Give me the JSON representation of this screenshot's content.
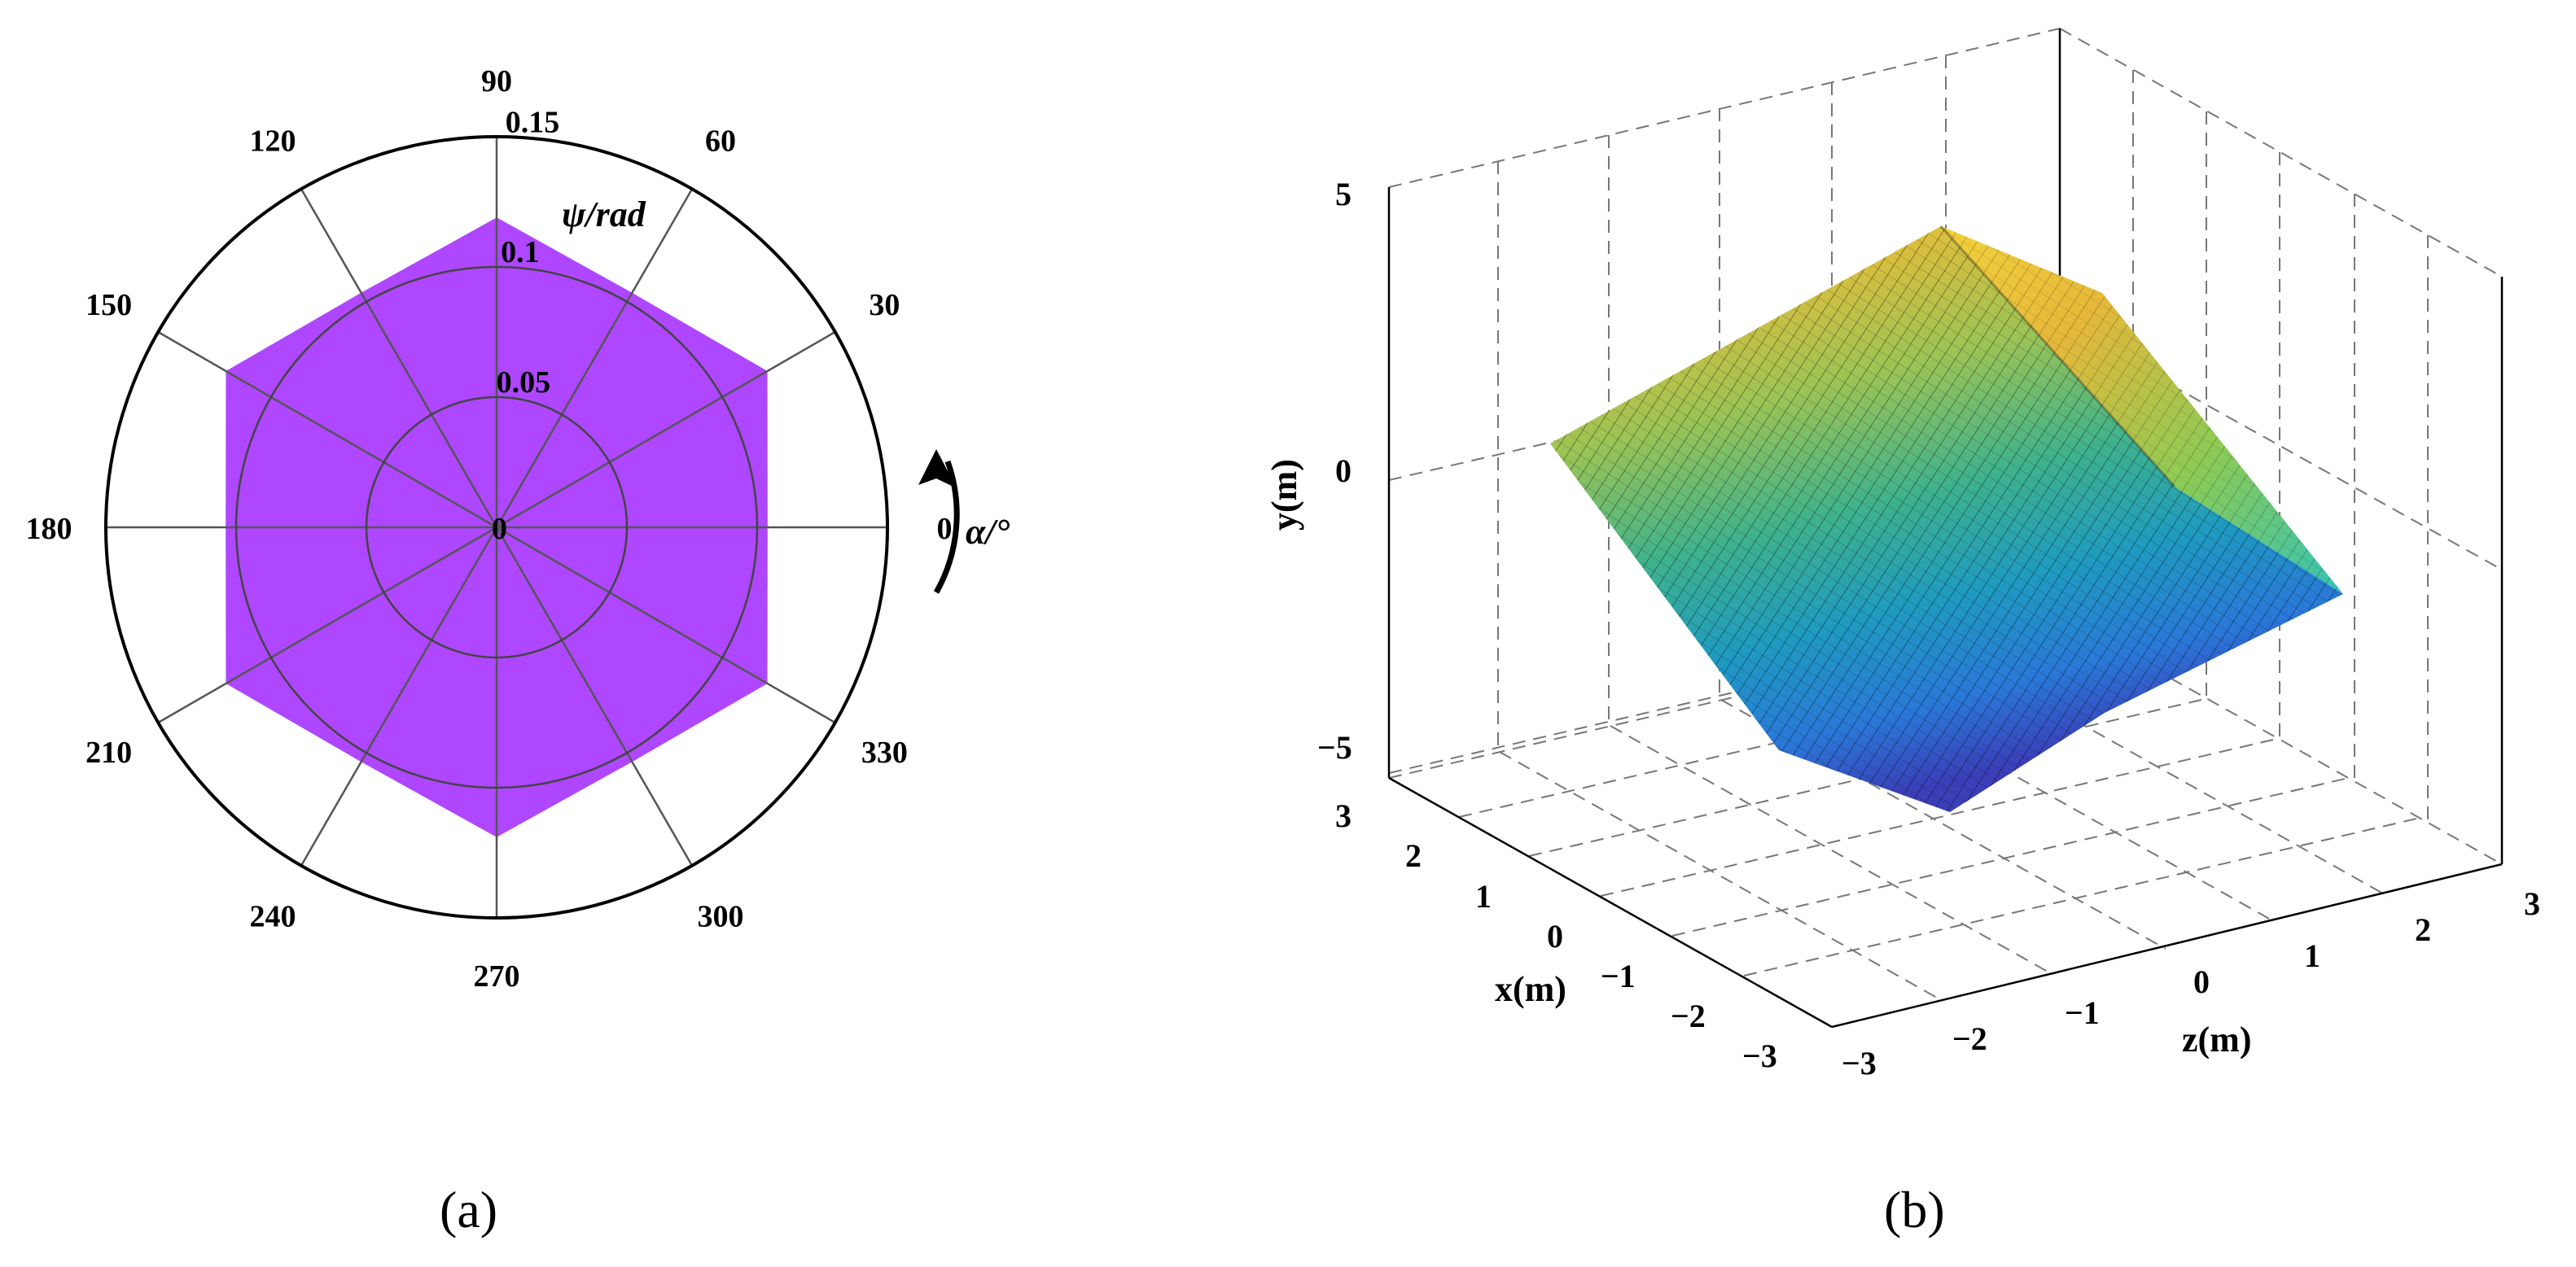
{
  "chart_data": [
    {
      "type": "polar-area",
      "panel_label": "(a)",
      "angle_axis_label": "α/°",
      "radial_axis_label": "ψ/rad",
      "angle_ticks": [
        0,
        30,
        60,
        90,
        120,
        150,
        180,
        210,
        240,
        270,
        300,
        330
      ],
      "angle_tick_labels": [
        "0",
        "30",
        "60",
        "90",
        "120",
        "150",
        "180",
        "210",
        "240",
        "270",
        "300",
        "330"
      ],
      "radial_ticks": [
        0,
        0.05,
        0.1,
        0.15
      ],
      "radial_tick_labels": [
        "0",
        "0.05",
        "0.1",
        "0.15"
      ],
      "rlim": [
        0,
        0.15
      ],
      "grid": true,
      "series": [
        {
          "color": "#AE47FF",
          "theta_deg": [
            0,
            30,
            60,
            90,
            120,
            150,
            180,
            210,
            240,
            270,
            300,
            330
          ],
          "r": [
            0.104,
            0.12,
            0.104,
            0.119,
            0.104,
            0.12,
            0.104,
            0.12,
            0.104,
            0.119,
            0.104,
            0.12
          ]
        }
      ]
    },
    {
      "type": "surface3d",
      "panel_label": "(b)",
      "xlabel": "x(m)",
      "ylabel": "y(m)",
      "zlabel": "z(m)",
      "x_ticks": [
        "−3",
        "−2",
        "−1",
        "0",
        "1",
        "2",
        "3"
      ],
      "y_ticks": [
        "−5",
        "0",
        "5"
      ],
      "z_ticks": [
        "−3",
        "−2",
        "−1",
        "0",
        "1",
        "2",
        "3"
      ],
      "xlim": [
        -3,
        3
      ],
      "ylim": [
        -5,
        5
      ],
      "zlim": [
        -3,
        3
      ],
      "grid": true,
      "colormap": "parula",
      "surface_corners": [
        {
          "x": 1.6,
          "z": -2.9,
          "y": 1.0
        },
        {
          "x": -1.2,
          "z": -2.9,
          "y": 4.2
        },
        {
          "x": -2.4,
          "z": -1.1,
          "y": 5.0
        },
        {
          "x": -2.8,
          "z": 1.3,
          "y": 3.9
        },
        {
          "x": -2.8,
          "z": 2.9,
          "y": 1.4
        },
        {
          "x": 0.0,
          "z": 2.9,
          "y": -2.4
        },
        {
          "x": 1.6,
          "z": 1.3,
          "y": -4.4
        },
        {
          "x": 2.2,
          "z": -0.6,
          "y": -4.9
        }
      ]
    }
  ]
}
